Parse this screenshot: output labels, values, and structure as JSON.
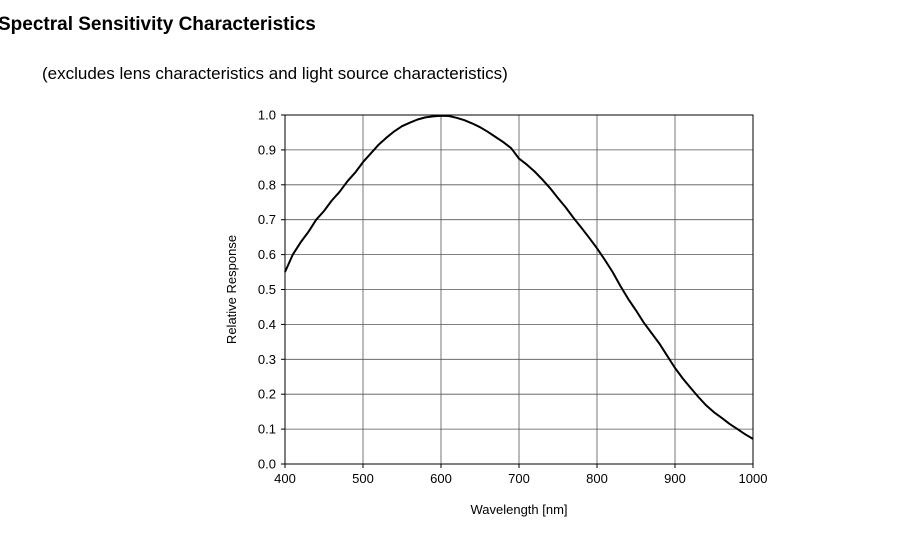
{
  "header": {
    "title": "Spectral Sensitivity Characteristics",
    "subtitle": "(excludes lens characteristics and light source characteristics)"
  },
  "chart_data": {
    "type": "line",
    "title": "",
    "xlabel": "Wavelength [nm]",
    "ylabel": "Relative Response",
    "xlim": [
      400,
      1000
    ],
    "ylim": [
      0.0,
      1.0
    ],
    "x_ticks": [
      "400",
      "500",
      "600",
      "700",
      "800",
      "900",
      "1000"
    ],
    "y_ticks": [
      "0.0",
      "0.1",
      "0.2",
      "0.3",
      "0.4",
      "0.5",
      "0.6",
      "0.7",
      "0.8",
      "0.9",
      "1.0"
    ],
    "grid": true,
    "legend": "none",
    "line_color": "#000000",
    "series": [
      {
        "x": [
          400,
          410,
          420,
          430,
          440,
          450,
          460,
          470,
          480,
          490,
          500,
          510,
          520,
          530,
          540,
          550,
          560,
          570,
          580,
          590,
          600,
          610,
          620,
          630,
          640,
          650,
          660,
          670,
          680,
          690,
          700,
          710,
          720,
          730,
          740,
          750,
          760,
          770,
          780,
          790,
          800,
          810,
          820,
          830,
          840,
          850,
          860,
          870,
          880,
          890,
          900,
          910,
          920,
          930,
          940,
          950,
          960,
          970,
          980,
          990,
          1000
        ],
        "y": [
          0.55,
          0.6,
          0.635,
          0.665,
          0.7,
          0.725,
          0.755,
          0.78,
          0.81,
          0.835,
          0.865,
          0.89,
          0.915,
          0.935,
          0.953,
          0.968,
          0.978,
          0.987,
          0.993,
          0.996,
          0.998,
          0.997,
          0.992,
          0.985,
          0.976,
          0.965,
          0.952,
          0.937,
          0.922,
          0.905,
          0.875,
          0.858,
          0.838,
          0.815,
          0.79,
          0.762,
          0.735,
          0.705,
          0.677,
          0.648,
          0.618,
          0.585,
          0.55,
          0.51,
          0.473,
          0.44,
          0.405,
          0.375,
          0.345,
          0.31,
          0.275,
          0.245,
          0.218,
          0.192,
          0.168,
          0.148,
          0.132,
          0.115,
          0.1,
          0.085,
          0.072
        ]
      }
    ]
  }
}
